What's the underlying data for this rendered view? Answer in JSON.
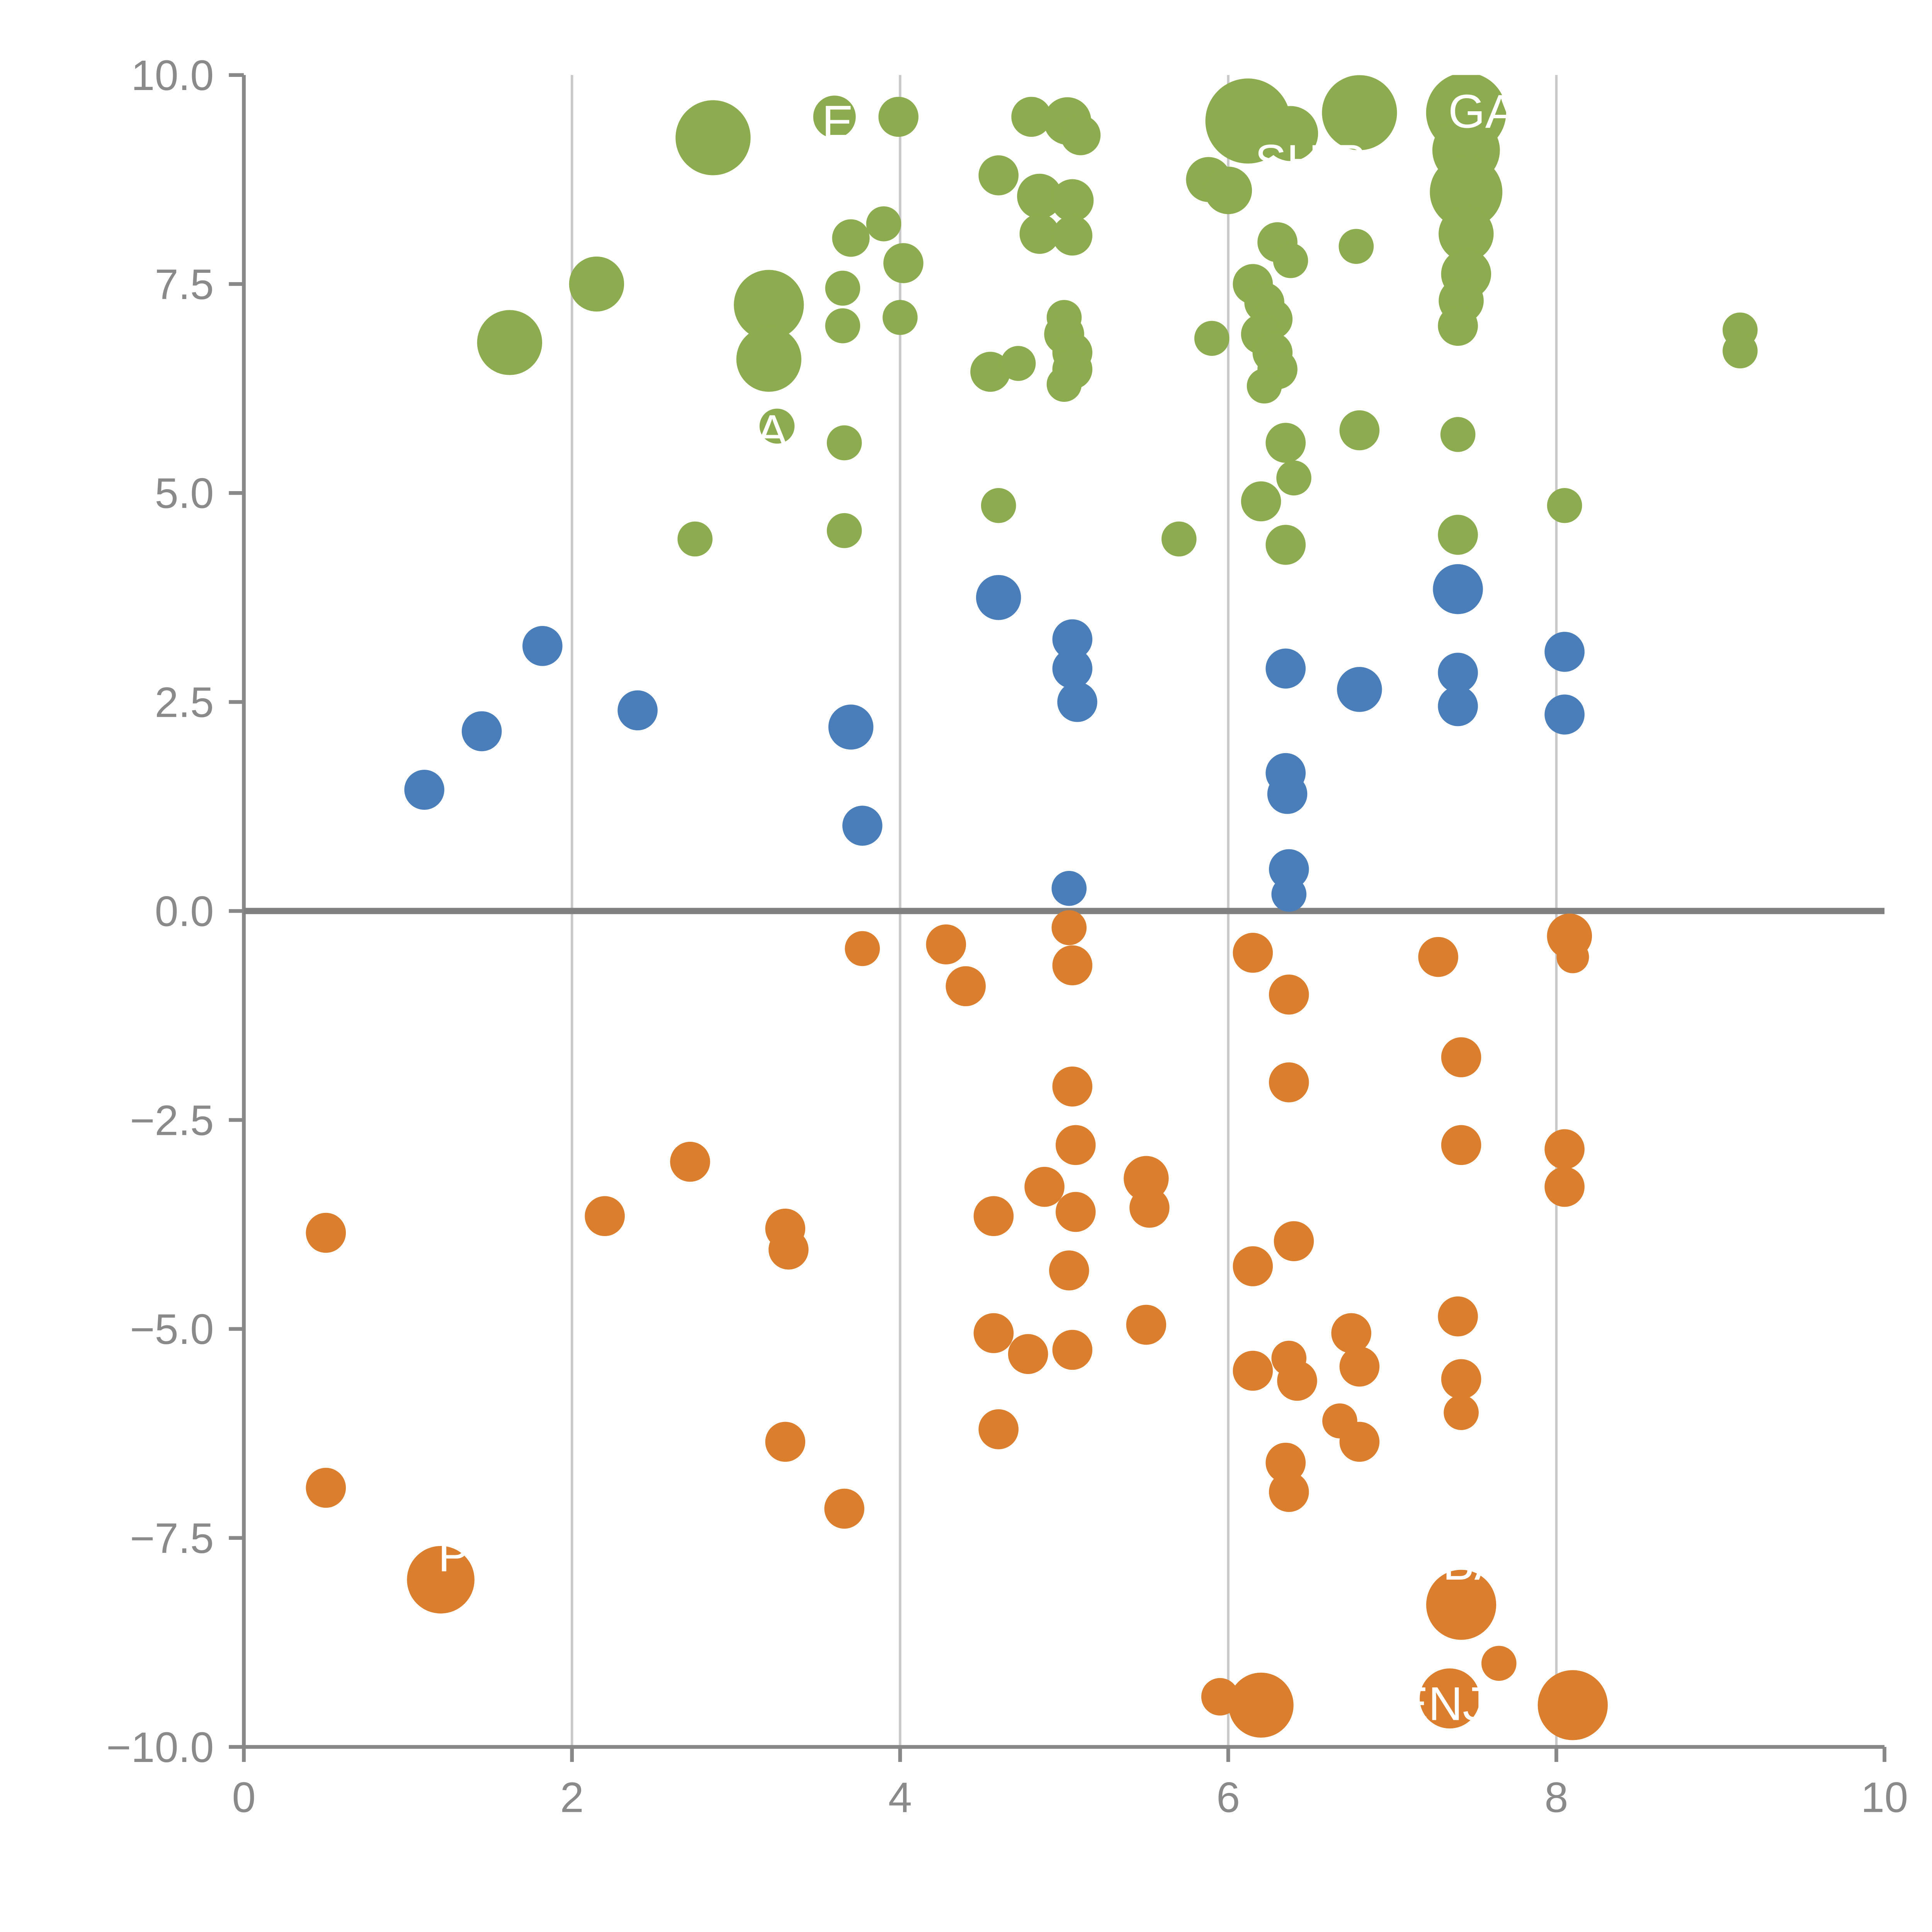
{
  "chart_data": {
    "type": "scatter",
    "title": "",
    "xlabel": "",
    "ylabel": "",
    "xlim": [
      0,
      10
    ],
    "ylim": [
      -10,
      10
    ],
    "x_ticks": [
      0,
      2,
      4,
      6,
      8,
      10
    ],
    "x_tick_labels": [
      "0",
      "2",
      "4",
      "6",
      "8",
      "10"
    ],
    "y_ticks": [
      -10,
      -7.5,
      -5,
      -2.5,
      0,
      2.5,
      5,
      7.5,
      10
    ],
    "y_tick_labels": [
      "−10.0",
      "−7.5",
      "−5.0",
      "−2.5",
      "0.0",
      "2.5",
      "5.0",
      "7.5",
      "10.0"
    ],
    "grid": "vertical-only",
    "zero_line": true,
    "legend": "none",
    "colors": {
      "grid": "#c9c9c9",
      "axis": "#888888",
      "zero_line": "#808080",
      "tick_label": "#8a8a8a",
      "annotation": "#ffffff",
      "green": "#8CAC4F",
      "blue": "#4A7EBB",
      "orange": "#DB7F2E"
    },
    "series": [
      {
        "name": "green-group",
        "color": "#8CAC4F",
        "points": [
          [
            2.86,
            9.25,
            30
          ],
          [
            3.6,
            9.5,
            17
          ],
          [
            3.99,
            9.5,
            16
          ],
          [
            4.8,
            9.5,
            16
          ],
          [
            5.02,
            9.45,
            19
          ],
          [
            5.1,
            9.28,
            16
          ],
          [
            6.12,
            9.45,
            34
          ],
          [
            6.38,
            9.3,
            22
          ],
          [
            6.8,
            9.55,
            30
          ],
          [
            7.45,
            9.55,
            32
          ],
          [
            7.45,
            9.1,
            27
          ],
          [
            4.6,
            8.8,
            16
          ],
          [
            5.88,
            8.75,
            18
          ],
          [
            6.0,
            8.62,
            19
          ],
          [
            4.85,
            8.55,
            18
          ],
          [
            5.05,
            8.5,
            17
          ],
          [
            7.45,
            8.6,
            29
          ],
          [
            4.85,
            8.1,
            16
          ],
          [
            5.05,
            8.08,
            16
          ],
          [
            3.7,
            8.05,
            15
          ],
          [
            3.9,
            8.22,
            14
          ],
          [
            4.02,
            7.75,
            16
          ],
          [
            6.3,
            8.0,
            16
          ],
          [
            6.38,
            7.78,
            14
          ],
          [
            6.78,
            7.95,
            14
          ],
          [
            7.45,
            8.1,
            22
          ],
          [
            7.45,
            7.62,
            20
          ],
          [
            7.42,
            7.3,
            18
          ],
          [
            2.15,
            7.5,
            22
          ],
          [
            3.2,
            7.25,
            28
          ],
          [
            3.65,
            7.45,
            14
          ],
          [
            4.0,
            7.1,
            14
          ],
          [
            3.65,
            7.0,
            14
          ],
          [
            1.62,
            6.8,
            26
          ],
          [
            3.2,
            6.6,
            26
          ],
          [
            4.55,
            6.45,
            16
          ],
          [
            4.72,
            6.55,
            14
          ],
          [
            5.0,
            7.1,
            14
          ],
          [
            5.0,
            6.9,
            16
          ],
          [
            5.05,
            6.68,
            16
          ],
          [
            5.05,
            6.48,
            16
          ],
          [
            5.0,
            6.3,
            14
          ],
          [
            5.9,
            6.85,
            14
          ],
          [
            6.15,
            7.5,
            16
          ],
          [
            6.22,
            7.28,
            16
          ],
          [
            6.27,
            7.08,
            16
          ],
          [
            6.2,
            6.9,
            16
          ],
          [
            6.27,
            6.68,
            16
          ],
          [
            6.3,
            6.48,
            16
          ],
          [
            6.22,
            6.28,
            14
          ],
          [
            7.4,
            7.0,
            16
          ],
          [
            9.12,
            6.95,
            14
          ],
          [
            9.12,
            6.7,
            14
          ],
          [
            3.25,
            5.8,
            14
          ],
          [
            3.66,
            5.6,
            14
          ],
          [
            6.35,
            5.6,
            16
          ],
          [
            6.4,
            5.18,
            14
          ],
          [
            6.8,
            5.75,
            16
          ],
          [
            7.4,
            5.7,
            14
          ],
          [
            4.6,
            4.85,
            14
          ],
          [
            6.2,
            4.9,
            16
          ],
          [
            6.35,
            4.38,
            16
          ],
          [
            2.75,
            4.45,
            14
          ],
          [
            3.66,
            4.55,
            14
          ],
          [
            5.7,
            4.45,
            14
          ],
          [
            7.4,
            4.5,
            16
          ],
          [
            8.05,
            4.85,
            14
          ]
        ]
      },
      {
        "name": "blue-group",
        "color": "#4A7EBB",
        "points": [
          [
            1.1,
            1.45,
            16
          ],
          [
            1.45,
            2.15,
            16
          ],
          [
            1.82,
            3.17,
            16
          ],
          [
            2.4,
            2.4,
            16
          ],
          [
            3.7,
            2.2,
            18
          ],
          [
            3.77,
            1.02,
            16
          ],
          [
            4.6,
            3.75,
            18
          ],
          [
            5.05,
            3.25,
            16
          ],
          [
            5.05,
            2.9,
            16
          ],
          [
            5.08,
            2.5,
            16
          ],
          [
            5.03,
            0.27,
            14
          ],
          [
            6.35,
            2.9,
            16
          ],
          [
            6.35,
            1.65,
            16
          ],
          [
            6.36,
            1.4,
            16
          ],
          [
            6.37,
            0.5,
            16
          ],
          [
            6.37,
            0.2,
            14
          ],
          [
            6.8,
            2.65,
            18
          ],
          [
            7.4,
            3.85,
            20
          ],
          [
            7.4,
            2.85,
            16
          ],
          [
            7.4,
            2.45,
            16
          ],
          [
            8.05,
            3.1,
            16
          ],
          [
            8.05,
            2.35,
            16
          ]
        ]
      },
      {
        "name": "orange-group",
        "color": "#DB7F2E",
        "points": [
          [
            3.77,
            -0.45,
            14
          ],
          [
            4.28,
            -0.4,
            16
          ],
          [
            4.4,
            -0.9,
            16
          ],
          [
            5.03,
            -0.2,
            14
          ],
          [
            5.05,
            -0.65,
            16
          ],
          [
            6.15,
            -0.5,
            16
          ],
          [
            6.37,
            -1.0,
            16
          ],
          [
            7.28,
            -0.55,
            16
          ],
          [
            8.08,
            -0.3,
            18
          ],
          [
            8.1,
            -0.55,
            13
          ],
          [
            6.37,
            -2.05,
            16
          ],
          [
            7.42,
            -1.75,
            16
          ],
          [
            5.05,
            -2.1,
            16
          ],
          [
            5.07,
            -2.8,
            16
          ],
          [
            7.42,
            -2.8,
            16
          ],
          [
            8.05,
            -2.85,
            16
          ],
          [
            8.05,
            -3.3,
            16
          ],
          [
            2.72,
            -3.0,
            16
          ],
          [
            2.2,
            -3.65,
            16
          ],
          [
            3.3,
            -3.8,
            16
          ],
          [
            3.32,
            -4.05,
            16
          ],
          [
            4.57,
            -3.65,
            16
          ],
          [
            4.88,
            -3.3,
            16
          ],
          [
            5.07,
            -3.6,
            16
          ],
          [
            5.03,
            -4.3,
            16
          ],
          [
            5.5,
            -3.2,
            18
          ],
          [
            5.52,
            -3.55,
            16
          ],
          [
            6.15,
            -4.25,
            16
          ],
          [
            6.4,
            -3.95,
            16
          ],
          [
            0.5,
            -3.85,
            16
          ],
          [
            0.5,
            -6.9,
            16
          ],
          [
            1.2,
            -8.0,
            27
          ],
          [
            4.57,
            -5.05,
            16
          ],
          [
            4.78,
            -5.3,
            16
          ],
          [
            5.05,
            -5.25,
            16
          ],
          [
            5.5,
            -4.95,
            16
          ],
          [
            6.15,
            -5.5,
            16
          ],
          [
            6.37,
            -5.35,
            14
          ],
          [
            6.42,
            -5.62,
            16
          ],
          [
            6.75,
            -5.05,
            16
          ],
          [
            6.8,
            -5.45,
            16
          ],
          [
            7.4,
            -4.85,
            16
          ],
          [
            7.42,
            -5.6,
            16
          ],
          [
            7.42,
            -6.0,
            14
          ],
          [
            6.68,
            -6.1,
            14
          ],
          [
            6.8,
            -6.35,
            16
          ],
          [
            4.6,
            -6.2,
            16
          ],
          [
            3.3,
            -6.35,
            16
          ],
          [
            6.35,
            -6.6,
            16
          ],
          [
            6.37,
            -6.95,
            16
          ],
          [
            3.66,
            -7.15,
            16
          ],
          [
            7.42,
            -8.3,
            28
          ],
          [
            7.65,
            -9.0,
            14
          ],
          [
            6.2,
            -9.5,
            26
          ],
          [
            5.95,
            -9.4,
            15
          ],
          [
            7.35,
            -9.42,
            24
          ],
          [
            8.1,
            -9.5,
            28
          ]
        ]
      }
    ],
    "annotations": [
      {
        "text": "E",
        "x": 3.62,
        "y": 9.42
      },
      {
        "text": "SHIP",
        "x": 6.5,
        "y": 8.95
      },
      {
        "text": "GA",
        "x": 7.55,
        "y": 9.55
      },
      {
        "text": "A",
        "x": 3.22,
        "y": 5.72
      },
      {
        "text": "P",
        "x": 1.28,
        "y": -7.72
      },
      {
        "text": "BA",
        "x": 7.5,
        "y": -7.82
      },
      {
        "text": "ENJ",
        "x": 7.3,
        "y": -9.5
      }
    ]
  }
}
